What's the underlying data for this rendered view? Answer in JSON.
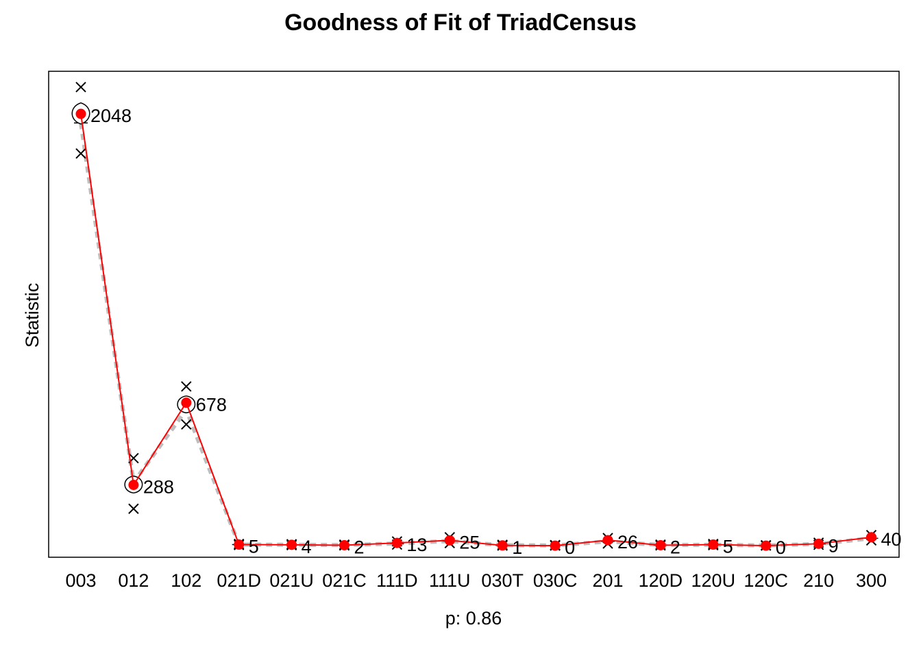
{
  "chart_data": {
    "type": "line",
    "title": "Goodness of Fit of TriadCensus",
    "xlabel": "p: 0.86",
    "ylabel": "Statistic",
    "categories": [
      "003",
      "012",
      "102",
      "021D",
      "021U",
      "021C",
      "111D",
      "111U",
      "030T",
      "030C",
      "201",
      "120D",
      "120U",
      "120C",
      "210",
      "300"
    ],
    "ylim": [
      -55,
      2250
    ],
    "grid": false,
    "y_ticks_shown": false,
    "observed": {
      "values": [
        2048,
        288,
        678,
        5,
        4,
        2,
        13,
        25,
        1,
        0,
        26,
        2,
        5,
        0,
        9,
        40
      ],
      "labels": [
        "2048",
        "288",
        "678",
        "5",
        "4",
        "2",
        "13",
        "25",
        "1",
        "0",
        "26",
        "2",
        "5",
        "0",
        "9",
        "40"
      ],
      "color": "#ff0000"
    },
    "simulated_mean": {
      "values": [
        2005,
        300,
        645,
        5,
        4,
        3,
        10,
        22,
        2,
        1,
        20,
        3,
        4,
        1,
        8,
        35
      ],
      "color": "#bebebe"
    },
    "simulated_range": {
      "low": [
        1860,
        175,
        575,
        3,
        2,
        1,
        5,
        12,
        0,
        0,
        10,
        1,
        2,
        0,
        4,
        25
      ],
      "high": [
        2175,
        415,
        755,
        8,
        7,
        5,
        20,
        40,
        4,
        3,
        36,
        5,
        8,
        2,
        14,
        50
      ]
    },
    "boxes": [
      {
        "cat": "003",
        "lo": 2000,
        "hi": 2100
      },
      {
        "cat": "012",
        "lo": 250,
        "hi": 330
      },
      {
        "cat": "102",
        "lo": 630,
        "hi": 710
      }
    ]
  }
}
